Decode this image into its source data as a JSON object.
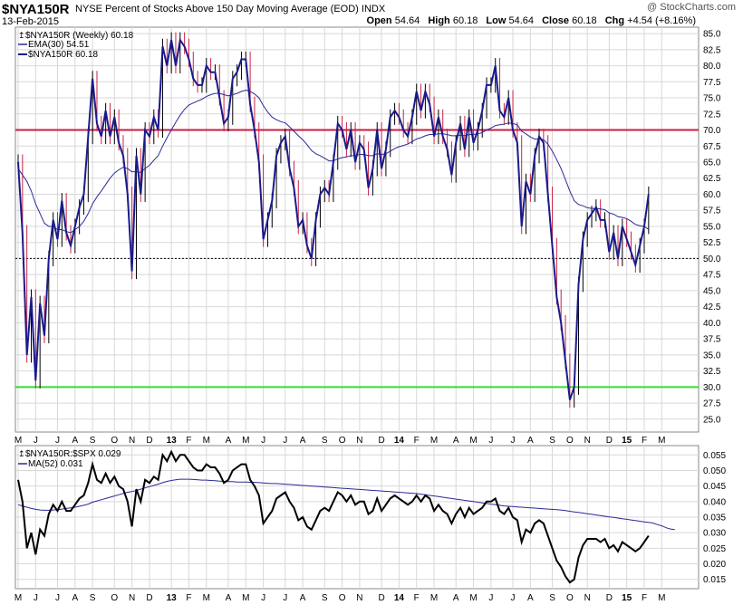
{
  "header": {
    "symbol": "$NYA150R",
    "subtitle": "NYSE Percent of Stocks Above 150 Day Moving Average (EOD)",
    "exchange": "INDX",
    "date": "13-Feb-2015",
    "copyright": "@ StockCharts.com",
    "open_label": "Open",
    "open": "54.64",
    "high_label": "High",
    "high": "60.18",
    "low_label": "Low",
    "low": "54.64",
    "close_label": "Close",
    "close": "60.18",
    "chg_label": "Chg",
    "chg": "+4.54 (+8.16%)"
  },
  "legend_top": {
    "line1": "$NYA150R (Weekly) 60.18",
    "line2": "EMA(30) 54.51",
    "line3": "$NYA150R 60.18"
  },
  "legend_bottom": {
    "line1": "$NYA150R:$SPX 0.029",
    "line2": "MA(52) 0.031"
  },
  "colors": {
    "price_line": "#1a1a8c",
    "up_bar": "#000000",
    "down_bar": "#cc2244",
    "ema_line": "#2a2a9a",
    "ref_red": "#cc1a44",
    "ref_green": "#33dd33",
    "ratio_line": "#000000",
    "ratio_ma": "#2a2a9a",
    "grid": "#d8d8d8"
  },
  "chart_data": [
    {
      "type": "line",
      "title": "$NYA150R (Weekly)",
      "ylim": [
        23,
        86
      ],
      "yticks": [
        "25.0",
        "27.5",
        "30.0",
        "32.5",
        "35.0",
        "37.5",
        "40.0",
        "42.5",
        "45.0",
        "47.5",
        "50.0",
        "52.5",
        "55.0",
        "57.5",
        "60.0",
        "62.5",
        "65.0",
        "67.5",
        "70.0",
        "72.5",
        "75.0",
        "77.5",
        "80.0",
        "82.5",
        "85.0"
      ],
      "ytick_values": [
        25,
        27.5,
        30,
        32.5,
        35,
        37.5,
        40,
        42.5,
        45,
        47.5,
        50,
        52.5,
        55,
        57.5,
        60,
        62.5,
        65,
        67.5,
        70,
        72.5,
        75,
        77.5,
        80,
        82.5,
        85
      ],
      "months": [
        {
          "label": "M",
          "week": 0
        },
        {
          "label": "J",
          "week": 4
        },
        {
          "label": "J",
          "week": 9
        },
        {
          "label": "A",
          "week": 13
        },
        {
          "label": "S",
          "week": 17
        },
        {
          "label": "O",
          "week": 22
        },
        {
          "label": "N",
          "week": 26
        },
        {
          "label": "D",
          "week": 30
        },
        {
          "label": "13",
          "week": 35,
          "bold": true
        },
        {
          "label": "F",
          "week": 39
        },
        {
          "label": "M",
          "week": 43
        },
        {
          "label": "A",
          "week": 48
        },
        {
          "label": "M",
          "week": 52
        },
        {
          "label": "J",
          "week": 56
        },
        {
          "label": "J",
          "week": 61
        },
        {
          "label": "A",
          "week": 65
        },
        {
          "label": "S",
          "week": 70
        },
        {
          "label": "O",
          "week": 74
        },
        {
          "label": "N",
          "week": 78
        },
        {
          "label": "D",
          "week": 83
        },
        {
          "label": "14",
          "week": 87,
          "bold": true
        },
        {
          "label": "F",
          "week": 91
        },
        {
          "label": "M",
          "week": 95
        },
        {
          "label": "A",
          "week": 100
        },
        {
          "label": "M",
          "week": 104
        },
        {
          "label": "J",
          "week": 108
        },
        {
          "label": "J",
          "week": 113
        },
        {
          "label": "A",
          "week": 117
        },
        {
          "label": "S",
          "week": 122
        },
        {
          "label": "O",
          "week": 126
        },
        {
          "label": "N",
          "week": 130
        },
        {
          "label": "D",
          "week": 135
        },
        {
          "label": "15",
          "week": 139,
          "bold": true
        },
        {
          "label": "F",
          "week": 143
        },
        {
          "label": "M",
          "week": 147
        }
      ],
      "weeks": 150,
      "series": [
        {
          "name": "$NYA150R",
          "values": [
            65,
            54,
            35,
            44,
            31,
            43,
            38,
            50,
            56,
            53,
            59,
            54,
            52,
            55,
            58,
            60,
            69,
            78,
            71,
            69,
            73,
            69,
            72,
            68,
            66,
            60,
            48,
            66,
            60,
            70,
            69,
            72,
            70,
            83,
            80,
            84,
            80,
            84,
            83,
            81,
            78,
            77,
            77,
            80,
            79,
            79,
            75,
            71,
            72,
            78,
            79,
            81,
            81,
            74,
            70,
            65,
            53,
            56,
            59,
            66,
            68,
            69,
            64,
            61,
            55,
            56,
            52,
            50,
            56,
            60,
            61,
            60,
            65,
            71,
            70,
            67,
            70,
            65,
            68,
            67,
            61,
            64,
            70,
            64,
            67,
            72,
            73,
            72,
            70,
            69,
            72,
            76,
            73,
            76,
            74,
            69,
            72,
            69,
            67,
            63,
            68,
            71,
            67,
            72,
            68,
            70,
            73,
            77,
            77,
            80,
            73,
            72,
            75,
            70,
            68,
            55,
            62,
            60,
            66,
            69,
            68,
            60,
            52,
            44,
            40,
            34,
            28,
            30,
            46,
            53,
            56,
            57,
            58,
            56,
            56,
            51,
            54,
            50,
            55,
            53,
            51,
            49,
            52,
            55,
            60
          ],
          "ema": [
            64,
            63,
            62,
            60.5,
            58.5,
            57,
            55.5,
            55,
            55,
            54.5,
            54.5,
            54.2,
            54,
            54.5,
            55,
            55.8,
            57,
            58.5,
            59.6,
            60.5,
            61.5,
            62.5,
            63.3,
            63.8,
            64.2,
            64,
            63.5,
            63.5,
            63.4,
            64,
            64.5,
            65.3,
            66,
            67.5,
            68.8,
            70,
            71.2,
            72.3,
            73.2,
            73.9,
            74.2,
            74.5,
            74.8,
            75.2,
            75.5,
            75.7,
            75.7,
            75.5,
            75.3,
            75.5,
            75.7,
            76,
            76.2,
            76,
            75.6,
            75,
            73.8,
            72.8,
            72,
            71.6,
            71.3,
            71.1,
            70.5,
            69.8,
            69.1,
            68.5,
            67.7,
            66.8,
            66.3,
            66,
            65.6,
            65.2,
            65.2,
            65.5,
            65.7,
            65.8,
            66,
            66,
            66.2,
            66.2,
            66,
            66,
            66.3,
            66.2,
            66.3,
            66.7,
            67.1,
            67.4,
            67.6,
            67.8,
            68.2,
            68.6,
            68.8,
            69.1,
            69.3,
            69.3,
            69.4,
            69.4,
            69.3,
            69.1,
            69.1,
            69.2,
            69.1,
            69.3,
            69.3,
            69.4,
            69.6,
            70,
            70.3,
            70.7,
            70.8,
            70.9,
            71.1,
            71,
            70.8,
            69.8,
            69.4,
            68.9,
            68.6,
            68.6,
            68.5,
            67.8,
            66.7,
            65.4,
            64,
            62.3,
            60.5,
            59,
            58.4,
            58.2,
            57.9,
            57.8,
            57.8,
            57.7,
            57.6,
            57.1,
            56.9,
            56.5,
            56.4,
            56.2,
            55.8,
            55.3,
            55.1,
            55,
            54.51
          ]
        }
      ],
      "reference_lines": [
        70,
        50,
        30
      ]
    },
    {
      "type": "line",
      "title": "$NYA150R:$SPX",
      "ylim": [
        0.012,
        0.058
      ],
      "yticks": [
        "0.015",
        "0.020",
        "0.025",
        "0.030",
        "0.035",
        "0.040",
        "0.045",
        "0.050",
        "0.055"
      ],
      "ytick_values": [
        0.015,
        0.02,
        0.025,
        0.03,
        0.035,
        0.04,
        0.045,
        0.05,
        0.055
      ],
      "series": [
        {
          "name": "$NYA150R:$SPX",
          "values": [
            0.047,
            0.04,
            0.025,
            0.03,
            0.023,
            0.031,
            0.029,
            0.036,
            0.039,
            0.037,
            0.04,
            0.037,
            0.037,
            0.039,
            0.041,
            0.042,
            0.046,
            0.052,
            0.047,
            0.046,
            0.049,
            0.046,
            0.048,
            0.045,
            0.044,
            0.04,
            0.032,
            0.044,
            0.04,
            0.047,
            0.046,
            0.048,
            0.047,
            0.055,
            0.053,
            0.056,
            0.053,
            0.055,
            0.055,
            0.053,
            0.051,
            0.05,
            0.05,
            0.052,
            0.051,
            0.051,
            0.049,
            0.046,
            0.047,
            0.05,
            0.051,
            0.052,
            0.052,
            0.047,
            0.045,
            0.042,
            0.033,
            0.035,
            0.037,
            0.041,
            0.042,
            0.043,
            0.04,
            0.038,
            0.034,
            0.035,
            0.032,
            0.031,
            0.034,
            0.037,
            0.038,
            0.037,
            0.04,
            0.043,
            0.042,
            0.04,
            0.042,
            0.039,
            0.04,
            0.04,
            0.036,
            0.037,
            0.041,
            0.037,
            0.039,
            0.041,
            0.042,
            0.041,
            0.04,
            0.039,
            0.04,
            0.042,
            0.04,
            0.042,
            0.041,
            0.037,
            0.039,
            0.037,
            0.036,
            0.033,
            0.036,
            0.038,
            0.035,
            0.038,
            0.036,
            0.037,
            0.038,
            0.04,
            0.04,
            0.041,
            0.037,
            0.036,
            0.038,
            0.035,
            0.034,
            0.027,
            0.031,
            0.03,
            0.033,
            0.034,
            0.033,
            0.029,
            0.025,
            0.021,
            0.019,
            0.016,
            0.014,
            0.015,
            0.022,
            0.026,
            0.028,
            0.028,
            0.028,
            0.027,
            0.028,
            0.025,
            0.026,
            0.024,
            0.027,
            0.026,
            0.025,
            0.024,
            0.025,
            0.027,
            0.029
          ]
        },
        {
          "name": "MA(52)",
          "values": [
            0.039,
            0.0386,
            0.0382,
            0.0378,
            0.0375,
            0.0373,
            0.0372,
            0.0372,
            0.0373,
            0.0374,
            0.0376,
            0.0378,
            0.038,
            0.0382,
            0.0385,
            0.0388,
            0.0392,
            0.0398,
            0.0402,
            0.0406,
            0.041,
            0.0414,
            0.0418,
            0.0422,
            0.0426,
            0.043,
            0.0432,
            0.0436,
            0.044,
            0.0444,
            0.0448,
            0.0452,
            0.0456,
            0.0461,
            0.0465,
            0.0468,
            0.047,
            0.0472,
            0.0472,
            0.0472,
            0.0471,
            0.047,
            0.0469,
            0.0469,
            0.0468,
            0.0467,
            0.0466,
            0.0465,
            0.0464,
            0.0464,
            0.0463,
            0.0463,
            0.0463,
            0.0462,
            0.0462,
            0.0461,
            0.046,
            0.0459,
            0.0458,
            0.0458,
            0.0457,
            0.0456,
            0.0455,
            0.0454,
            0.0453,
            0.0452,
            0.0451,
            0.045,
            0.0449,
            0.0448,
            0.0447,
            0.0446,
            0.0445,
            0.0444,
            0.0443,
            0.0442,
            0.0441,
            0.044,
            0.0439,
            0.0438,
            0.0437,
            0.0436,
            0.0435,
            0.0434,
            0.0433,
            0.0432,
            0.0431,
            0.043,
            0.0429,
            0.0428,
            0.0427,
            0.0426,
            0.0424,
            0.0422,
            0.042,
            0.0418,
            0.0416,
            0.0414,
            0.0412,
            0.041,
            0.0408,
            0.0406,
            0.0404,
            0.0402,
            0.04,
            0.0398,
            0.0396,
            0.0394,
            0.0392,
            0.039,
            0.0388,
            0.0386,
            0.0385,
            0.0384,
            0.0383,
            0.0382,
            0.0381,
            0.038,
            0.0379,
            0.0378,
            0.0377,
            0.0376,
            0.0375,
            0.0374,
            0.0373,
            0.0371,
            0.0369,
            0.0367,
            0.0365,
            0.0363,
            0.0361,
            0.0359,
            0.0357,
            0.0355,
            0.0353,
            0.0351,
            0.0349,
            0.0347,
            0.0345,
            0.0343,
            0.0341,
            0.0339,
            0.0337,
            0.0335,
            0.0333,
            0.0331,
            0.0326,
            0.0322,
            0.0316,
            0.0312,
            0.031
          ]
        }
      ]
    }
  ]
}
